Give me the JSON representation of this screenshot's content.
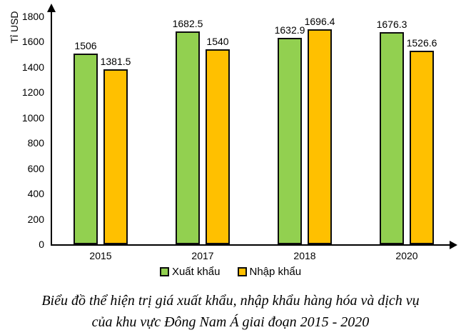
{
  "chart_data": {
    "type": "bar",
    "categories": [
      "2015",
      "2017",
      "2018",
      "2020"
    ],
    "series": [
      {
        "name": "Xuất khẩu",
        "color": "#92D050",
        "values": [
          1506,
          1682.5,
          1632.9,
          1676.3
        ]
      },
      {
        "name": "Nhập khẩu",
        "color": "#FFC000",
        "values": [
          1381.5,
          1540,
          1696.4,
          1526.6
        ]
      }
    ],
    "title": "",
    "xlabel": "",
    "ylabel": "Tỉ USD",
    "ylim": [
      0,
      1800
    ],
    "y_ticks": [
      0,
      200,
      400,
      600,
      800,
      1000,
      1200,
      1400,
      1600,
      1800
    ],
    "grid": false,
    "value_labels": true,
    "legend_position": "bottom",
    "bar_outline_color": "#0d0d0d"
  },
  "caption": {
    "line1": "Biểu đồ thể hiện trị giá xuất khẩu, nhập khẩu hàng hóa và dịch vụ",
    "line2": "của khu vực Đông Nam Á giai đoạn 2015 - 2020"
  }
}
